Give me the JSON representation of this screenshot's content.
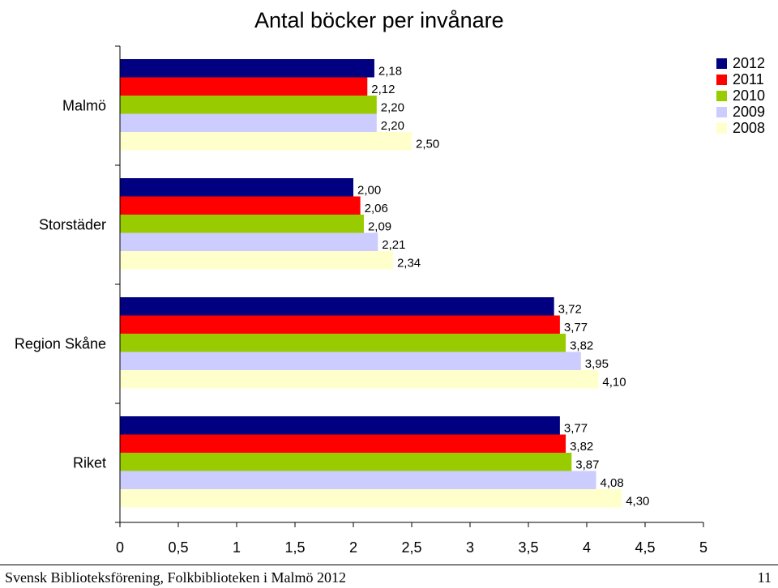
{
  "chart_data": {
    "type": "bar",
    "orientation": "horizontal",
    "title": "Antal böcker per invånare",
    "categories": [
      "Malmö",
      "Storstäder",
      "Region Skåne",
      "Riket"
    ],
    "series": [
      {
        "name": "2012",
        "color": "#000080",
        "values": [
          2.18,
          2.0,
          3.72,
          3.77
        ],
        "labels": [
          "2,18",
          "2,00",
          "3,72",
          "3,77"
        ]
      },
      {
        "name": "2011",
        "color": "#ff0000",
        "values": [
          2.12,
          2.06,
          3.77,
          3.82
        ],
        "labels": [
          "2,12",
          "2,06",
          "3,77",
          "3,82"
        ]
      },
      {
        "name": "2010",
        "color": "#99cc00",
        "values": [
          2.2,
          2.09,
          3.82,
          3.87
        ],
        "labels": [
          "2,20",
          "2,09",
          "3,82",
          "3,87"
        ]
      },
      {
        "name": "2009",
        "color": "#ccccff",
        "values": [
          2.2,
          2.21,
          3.95,
          4.08
        ],
        "labels": [
          "2,20",
          "2,21",
          "3,95",
          "4,08"
        ]
      },
      {
        "name": "2008",
        "color": "#ffffcc",
        "values": [
          2.5,
          2.34,
          4.1,
          4.3
        ],
        "labels": [
          "2,50",
          "2,34",
          "4,10",
          "4,30"
        ]
      }
    ],
    "xlim": [
      0,
      5
    ],
    "xticks": [
      0,
      0.5,
      1,
      1.5,
      2,
      2.5,
      3,
      3.5,
      4,
      4.5,
      5
    ],
    "xtick_labels": [
      "0",
      "0,5",
      "1",
      "1,5",
      "2",
      "2,5",
      "3",
      "3,5",
      "4",
      "4,5",
      "5"
    ],
    "grid": false,
    "legend_position": "top-right"
  },
  "footer": {
    "text": "Svensk Biblioteksförening, Folkbiblioteken i Malmö 2012",
    "page_number": "11"
  }
}
